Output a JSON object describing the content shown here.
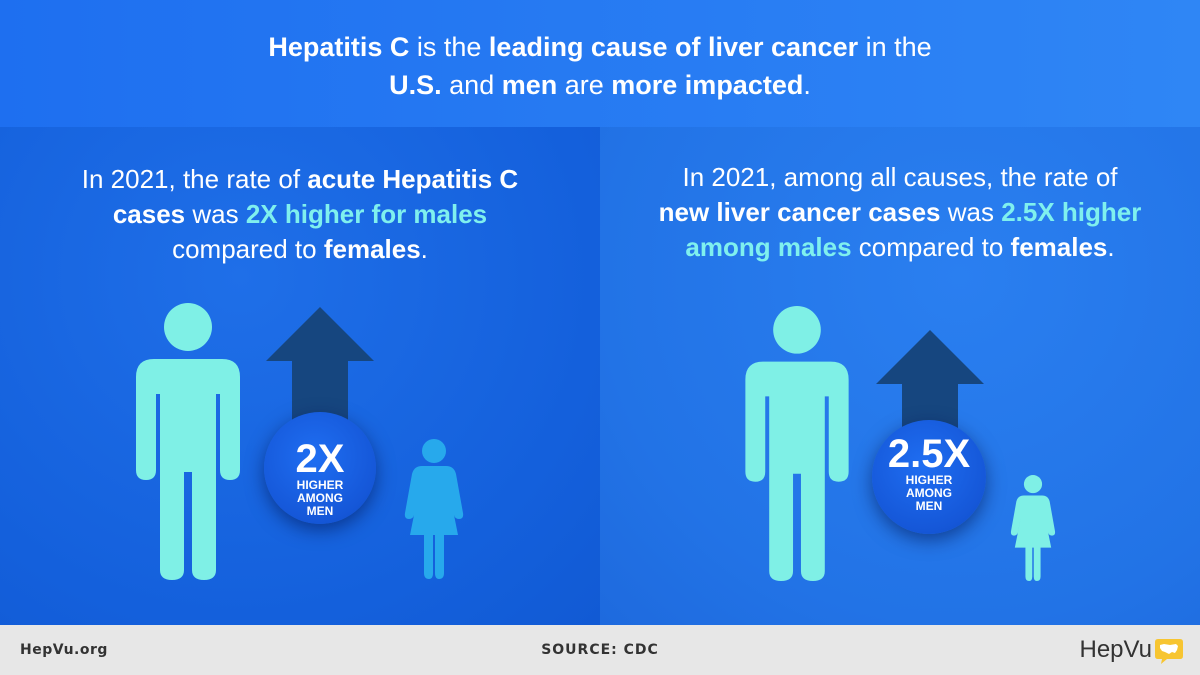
{
  "header": {
    "line1": [
      {
        "text": "Hepatitis C",
        "bold": true
      },
      {
        "text": " is the ",
        "bold": false
      },
      {
        "text": "leading cause of liver cancer",
        "bold": true
      },
      {
        "text": " in the",
        "bold": false
      }
    ],
    "line2": [
      {
        "text": "U.S.",
        "bold": true
      },
      {
        "text": " and ",
        "bold": false
      },
      {
        "text": "men",
        "bold": true
      },
      {
        "text": " are ",
        "bold": false
      },
      {
        "text": "more impacted",
        "bold": true
      },
      {
        "text": ".",
        "bold": false
      }
    ]
  },
  "left_panel": {
    "text_lines": [
      [
        {
          "t": "In 2021, the rate of ",
          "s": "n"
        },
        {
          "t": "acute Hepatitis C",
          "s": "b"
        }
      ],
      [
        {
          "t": "cases",
          "s": "b"
        },
        {
          "t": " was ",
          "s": "n"
        },
        {
          "t": "2X higher for males",
          "s": "h"
        }
      ],
      [
        {
          "t": "compared to ",
          "s": "n"
        },
        {
          "t": "females",
          "s": "b"
        },
        {
          "t": ".",
          "s": "n"
        }
      ]
    ],
    "badge_value": "2X",
    "badge_line1": "HIGHER",
    "badge_line2": "AMONG",
    "badge_line3": "MEN"
  },
  "right_panel": {
    "text_lines": [
      [
        {
          "t": "In 2021, among all causes, the rate of",
          "s": "n"
        }
      ],
      [
        {
          "t": "new liver cancer cases",
          "s": "b"
        },
        {
          "t": " was ",
          "s": "n"
        },
        {
          "t": "2.5X higher",
          "s": "h"
        }
      ],
      [
        {
          "t": "among males",
          "s": "h"
        },
        {
          "t": " compared to ",
          "s": "n"
        },
        {
          "t": "females",
          "s": "b"
        },
        {
          "t": ".",
          "s": "n"
        }
      ]
    ],
    "badge_value": "2.5X",
    "badge_line1": "HIGHER",
    "badge_line2": "AMONG",
    "badge_line3": "MEN"
  },
  "footer": {
    "site": "HepVu.org",
    "source": "SOURCE: CDC",
    "brand": "HepVu"
  },
  "colors": {
    "male_figure": "#7ff0e6",
    "female_figure": "#27a9ec",
    "arrow": "#16467f",
    "highlight_text": "#7ff0ee",
    "brand_icon": "#f7c531"
  },
  "icons": [
    "male-figure-icon",
    "female-figure-icon",
    "up-arrow-icon",
    "us-map-speech-icon"
  ]
}
